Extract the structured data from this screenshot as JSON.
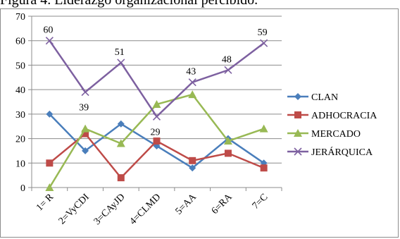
{
  "caption": "Figura 4. Liderazgo organizacional percibido.",
  "chart_data": {
    "type": "line",
    "categories": [
      "1= R",
      "2=VyCDI",
      "3=CAyJD",
      "4=CLMD",
      "5=AA",
      "6=RA",
      "7=C"
    ],
    "ylim": [
      0,
      70
    ],
    "yticks": [
      0,
      10,
      20,
      30,
      40,
      50,
      60,
      70
    ],
    "grid": true,
    "legend": "right",
    "series": [
      {
        "name": "CLAN",
        "color": "#4a7ebb",
        "marker": "diamond",
        "values": [
          30,
          15,
          26,
          17,
          8,
          20,
          10
        ]
      },
      {
        "name": "ADHOCRACIA",
        "color": "#be4b48",
        "marker": "square",
        "values": [
          10,
          22,
          4,
          19,
          11,
          14,
          8
        ]
      },
      {
        "name": "MERCADO",
        "color": "#98b954",
        "marker": "triangle",
        "values": [
          0,
          24,
          18,
          34,
          38,
          19,
          24
        ]
      },
      {
        "name": "JERÁRQUICA",
        "color": "#7d60a0",
        "marker": "x",
        "values": [
          60,
          39,
          51,
          29,
          43,
          48,
          59
        ],
        "labels": [
          "60",
          "39",
          "51",
          "29",
          "43",
          "48",
          "59"
        ]
      }
    ]
  }
}
